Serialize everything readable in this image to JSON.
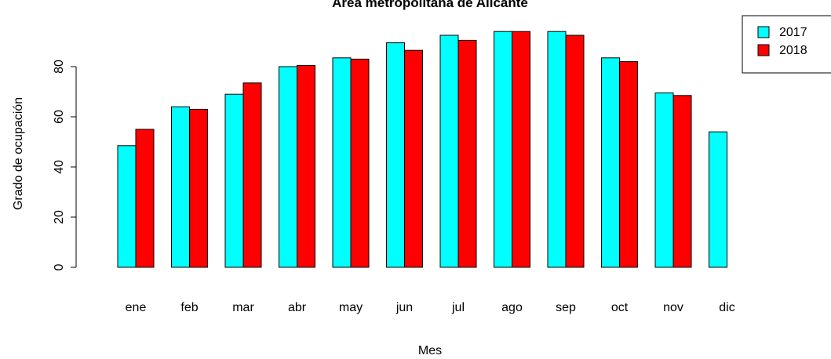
{
  "chart_data": {
    "type": "bar",
    "title": "Área metropolitana de Alicante",
    "xlabel": "Mes",
    "ylabel": "Grado de ocupación",
    "categories": [
      "ene",
      "feb",
      "mar",
      "abr",
      "may",
      "jun",
      "jul",
      "ago",
      "sep",
      "oct",
      "nov",
      "dic"
    ],
    "series": [
      {
        "name": "2017",
        "color": "#00ffff",
        "values": [
          48.5,
          64.0,
          69.0,
          80.0,
          83.5,
          89.5,
          92.5,
          94.0,
          94.0,
          83.5,
          69.5,
          54.0
        ]
      },
      {
        "name": "2018",
        "color": "#ff0000",
        "values": [
          55.0,
          63.0,
          73.5,
          80.5,
          83.0,
          86.5,
          90.5,
          94.0,
          92.5,
          82.0,
          68.5,
          null
        ]
      }
    ],
    "yticks": [
      0,
      20,
      40,
      60,
      80
    ],
    "ylim": [
      0,
      94
    ],
    "grid": false,
    "legend_position": "top-right"
  }
}
